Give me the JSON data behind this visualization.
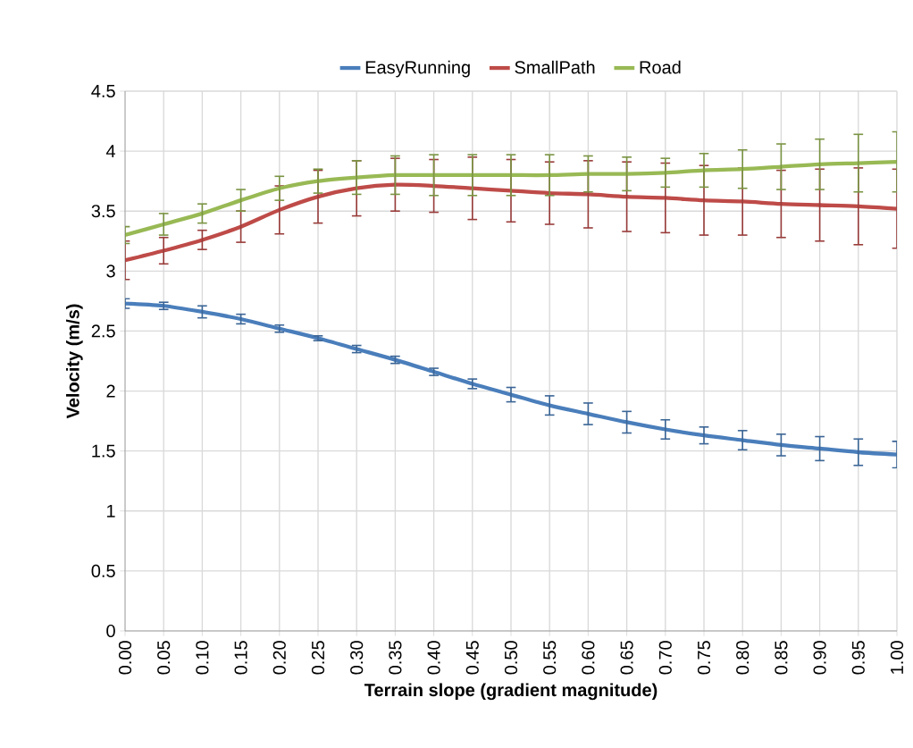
{
  "chart_data": {
    "type": "line",
    "xlabel": "Terrain slope (gradient magnitude)",
    "ylabel": "Velocity (m/s)",
    "x": [
      0,
      0.05,
      0.1,
      0.15,
      0.2,
      0.25,
      0.3,
      0.35,
      0.4,
      0.45,
      0.5,
      0.55,
      0.6,
      0.65,
      0.7,
      0.75,
      0.8,
      0.85,
      0.9,
      0.95,
      1
    ],
    "series": [
      {
        "name": "EasyRunning",
        "color": "#4a7ebb",
        "values": [
          2.73,
          2.71,
          2.66,
          2.6,
          2.52,
          2.44,
          2.35,
          2.26,
          2.16,
          2.06,
          1.97,
          1.88,
          1.81,
          1.74,
          1.68,
          1.63,
          1.59,
          1.55,
          1.52,
          1.49,
          1.47
        ],
        "errors": [
          0.04,
          0.03,
          0.05,
          0.04,
          0.03,
          0.02,
          0.03,
          0.03,
          0.03,
          0.04,
          0.06,
          0.08,
          0.09,
          0.09,
          0.08,
          0.07,
          0.08,
          0.09,
          0.1,
          0.11,
          0.11
        ]
      },
      {
        "name": "SmallPath",
        "color": "#be4b48",
        "values": [
          3.09,
          3.17,
          3.26,
          3.37,
          3.51,
          3.62,
          3.69,
          3.72,
          3.71,
          3.69,
          3.67,
          3.65,
          3.64,
          3.62,
          3.61,
          3.59,
          3.58,
          3.56,
          3.55,
          3.54,
          3.52
        ],
        "errors": [
          0.16,
          0.11,
          0.08,
          0.13,
          0.2,
          0.22,
          0.23,
          0.22,
          0.22,
          0.26,
          0.26,
          0.26,
          0.28,
          0.29,
          0.29,
          0.29,
          0.28,
          0.28,
          0.3,
          0.32,
          0.33
        ]
      },
      {
        "name": "Road",
        "color": "#98b954",
        "values": [
          3.3,
          3.39,
          3.48,
          3.59,
          3.69,
          3.75,
          3.78,
          3.8,
          3.8,
          3.8,
          3.8,
          3.8,
          3.81,
          3.81,
          3.82,
          3.84,
          3.85,
          3.87,
          3.89,
          3.9,
          3.91
        ],
        "errors": [
          0.07,
          0.09,
          0.08,
          0.09,
          0.1,
          0.1,
          0.14,
          0.16,
          0.17,
          0.17,
          0.17,
          0.17,
          0.15,
          0.14,
          0.12,
          0.14,
          0.16,
          0.19,
          0.21,
          0.24,
          0.25
        ]
      }
    ],
    "xlim": [
      0,
      1
    ],
    "xticks": [
      {
        "value": 0,
        "label": "0.00"
      },
      {
        "value": 0.05,
        "label": "0.05"
      },
      {
        "value": 0.1,
        "label": "0.10"
      },
      {
        "value": 0.15,
        "label": "0.15"
      },
      {
        "value": 0.2,
        "label": "0.20"
      },
      {
        "value": 0.25,
        "label": "0.25"
      },
      {
        "value": 0.3,
        "label": "0.30"
      },
      {
        "value": 0.35,
        "label": "0.35"
      },
      {
        "value": 0.4,
        "label": "0.40"
      },
      {
        "value": 0.45,
        "label": "0.45"
      },
      {
        "value": 0.5,
        "label": "0.50"
      },
      {
        "value": 0.55,
        "label": "0.55"
      },
      {
        "value": 0.6,
        "label": "0.60"
      },
      {
        "value": 0.65,
        "label": "0.65"
      },
      {
        "value": 0.7,
        "label": "0.70"
      },
      {
        "value": 0.75,
        "label": "0.75"
      },
      {
        "value": 0.8,
        "label": "0.80"
      },
      {
        "value": 0.85,
        "label": "0.85"
      },
      {
        "value": 0.9,
        "label": "0.90"
      },
      {
        "value": 0.95,
        "label": "0.95"
      },
      {
        "value": 1,
        "label": "1.00"
      }
    ],
    "ylim": [
      0,
      4.5
    ],
    "yticks": [
      0,
      0.5,
      1,
      1.5,
      2,
      2.5,
      3,
      3.5,
      4,
      4.5
    ],
    "grid": true,
    "legend": "top",
    "marker": "none",
    "line_style": "solid"
  }
}
